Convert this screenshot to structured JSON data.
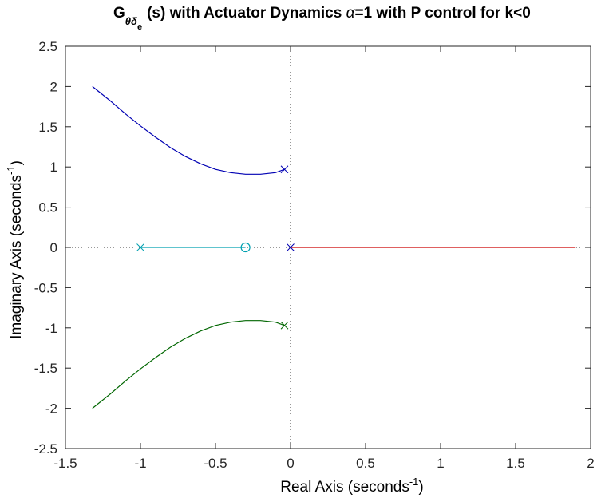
{
  "chart_data": {
    "type": "line",
    "title": {
      "g": "G",
      "sub": "θδ",
      "subsub": "e",
      "mid": "(s) with Actuator Dynamics ",
      "alpha": "α",
      "rest": "=1 with P control for k<0"
    },
    "xlabel": {
      "main": "Real Axis (seconds",
      "sup": "-1",
      "close": ")"
    },
    "ylabel": {
      "main": "Imaginary Axis (seconds",
      "sup": "-1",
      "close": ")"
    },
    "xlim": [
      -1.5,
      2
    ],
    "ylim": [
      -2.5,
      2.5
    ],
    "xticks": [
      -1.5,
      -1,
      -0.5,
      0,
      0.5,
      1,
      1.5,
      2
    ],
    "xtick_labels": [
      "-1.5",
      "-1",
      "-0.5",
      "0",
      "0.5",
      "1",
      "1.5",
      "2"
    ],
    "yticks": [
      -2.5,
      -2,
      -1.5,
      -1,
      -0.5,
      0,
      0.5,
      1,
      1.5,
      2,
      2.5
    ],
    "ytick_labels": [
      "-2.5",
      "-2",
      "-1.5",
      "-1",
      "-0.5",
      "0",
      "0.5",
      "1",
      "1.5",
      "2",
      "2.5"
    ],
    "grid": false,
    "reference_lines": {
      "x": 0,
      "y": 0,
      "style": "dotted"
    },
    "series": [
      {
        "color": "#0000b3",
        "x": [
          -0.04,
          -0.1,
          -0.2,
          -0.3,
          -0.4,
          -0.5,
          -0.6,
          -0.7,
          -0.8,
          -0.9,
          -1.0,
          -1.1,
          -1.2,
          -1.32
        ],
        "y": [
          0.97,
          0.93,
          0.91,
          0.91,
          0.93,
          0.97,
          1.04,
          1.13,
          1.24,
          1.37,
          1.51,
          1.66,
          1.82,
          2.0
        ]
      },
      {
        "color": "#006600",
        "x": [
          -0.04,
          -0.1,
          -0.2,
          -0.3,
          -0.4,
          -0.5,
          -0.6,
          -0.7,
          -0.8,
          -0.9,
          -1.0,
          -1.1,
          -1.2,
          -1.32
        ],
        "y": [
          -0.97,
          -0.93,
          -0.91,
          -0.91,
          -0.93,
          -0.97,
          -1.04,
          -1.13,
          -1.24,
          -1.37,
          -1.51,
          -1.66,
          -1.82,
          -2.0
        ]
      },
      {
        "color": "#00a0b0",
        "x": [
          -1.0,
          -0.3
        ],
        "y": [
          0,
          0
        ]
      },
      {
        "color": "#cc0000",
        "x": [
          0,
          1.9
        ],
        "y": [
          0,
          0
        ]
      }
    ],
    "poles": [
      {
        "x": -0.04,
        "y": 0.97,
        "color": "#0000b3"
      },
      {
        "x": -0.04,
        "y": -0.97,
        "color": "#006600"
      },
      {
        "x": -1.0,
        "y": 0,
        "color": "#00a0b0"
      },
      {
        "x": 0,
        "y": 0,
        "color": "#0000b3"
      }
    ],
    "zeros": [
      {
        "x": -0.3,
        "y": 0,
        "color": "#00a0b0"
      }
    ]
  }
}
